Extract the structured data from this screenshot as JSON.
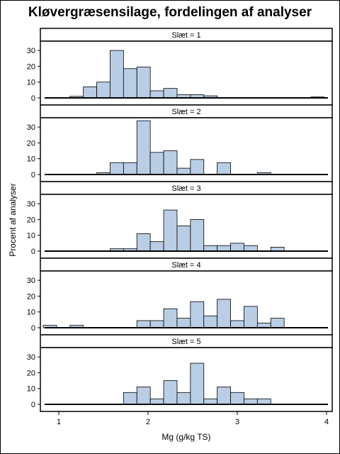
{
  "chart_data": {
    "type": "bar",
    "title": "Kløvergræsensilage, fordelingen af analyser",
    "xlabel": "Mg (g/kg TS)",
    "ylabel": "Procent af analyser",
    "xlim": [
      0.8,
      4.05
    ],
    "ylim": [
      0,
      35
    ],
    "x_ticks": [
      1,
      2,
      3,
      4
    ],
    "y_ticks": [
      0,
      10,
      20,
      30
    ],
    "bin_width": 0.15,
    "grid": false,
    "bar_color": "#b9cde5",
    "panels": [
      {
        "label": "Slæt = 1",
        "bins": [
          {
            "x": 1.2,
            "y": 1
          },
          {
            "x": 1.35,
            "y": 7
          },
          {
            "x": 1.5,
            "y": 10
          },
          {
            "x": 1.65,
            "y": 30
          },
          {
            "x": 1.8,
            "y": 18.5
          },
          {
            "x": 1.95,
            "y": 19.5
          },
          {
            "x": 2.1,
            "y": 4.5
          },
          {
            "x": 2.25,
            "y": 6
          },
          {
            "x": 2.4,
            "y": 2
          },
          {
            "x": 2.55,
            "y": 2
          },
          {
            "x": 2.7,
            "y": 1.3
          },
          {
            "x": 3.9,
            "y": 0.6
          }
        ]
      },
      {
        "label": "Slæt = 2",
        "bins": [
          {
            "x": 1.5,
            "y": 1.2
          },
          {
            "x": 1.65,
            "y": 7.5
          },
          {
            "x": 1.8,
            "y": 7.5
          },
          {
            "x": 1.95,
            "y": 34
          },
          {
            "x": 2.1,
            "y": 14
          },
          {
            "x": 2.25,
            "y": 15
          },
          {
            "x": 2.4,
            "y": 4
          },
          {
            "x": 2.55,
            "y": 9.5
          },
          {
            "x": 2.85,
            "y": 7.5
          },
          {
            "x": 3.3,
            "y": 1.2
          }
        ]
      },
      {
        "label": "Slæt = 3",
        "bins": [
          {
            "x": 1.65,
            "y": 1.5
          },
          {
            "x": 1.8,
            "y": 1.5
          },
          {
            "x": 1.95,
            "y": 11
          },
          {
            "x": 2.1,
            "y": 6
          },
          {
            "x": 2.25,
            "y": 26
          },
          {
            "x": 2.4,
            "y": 16
          },
          {
            "x": 2.55,
            "y": 20
          },
          {
            "x": 2.7,
            "y": 3.5
          },
          {
            "x": 2.85,
            "y": 3.5
          },
          {
            "x": 3.0,
            "y": 5
          },
          {
            "x": 3.15,
            "y": 3.5
          },
          {
            "x": 3.45,
            "y": 2.5
          }
        ]
      },
      {
        "label": "Slæt = 4",
        "bins": [
          {
            "x": 0.9,
            "y": 1.5
          },
          {
            "x": 1.2,
            "y": 1.5
          },
          {
            "x": 1.95,
            "y": 4.5
          },
          {
            "x": 2.1,
            "y": 4.5
          },
          {
            "x": 2.25,
            "y": 12
          },
          {
            "x": 2.4,
            "y": 6
          },
          {
            "x": 2.55,
            "y": 16.5
          },
          {
            "x": 2.7,
            "y": 7.5
          },
          {
            "x": 2.85,
            "y": 18
          },
          {
            "x": 3.0,
            "y": 4.5
          },
          {
            "x": 3.15,
            "y": 13.5
          },
          {
            "x": 3.3,
            "y": 3
          },
          {
            "x": 3.45,
            "y": 6
          }
        ]
      },
      {
        "label": "Slæt = 5",
        "bins": [
          {
            "x": 1.8,
            "y": 7.5
          },
          {
            "x": 1.95,
            "y": 11
          },
          {
            "x": 2.1,
            "y": 3.5
          },
          {
            "x": 2.25,
            "y": 15
          },
          {
            "x": 2.4,
            "y": 7.5
          },
          {
            "x": 2.55,
            "y": 26
          },
          {
            "x": 2.7,
            "y": 3.5
          },
          {
            "x": 2.85,
            "y": 11
          },
          {
            "x": 3.0,
            "y": 7.5
          },
          {
            "x": 3.15,
            "y": 3.5
          },
          {
            "x": 3.3,
            "y": 3.5
          }
        ]
      }
    ]
  }
}
